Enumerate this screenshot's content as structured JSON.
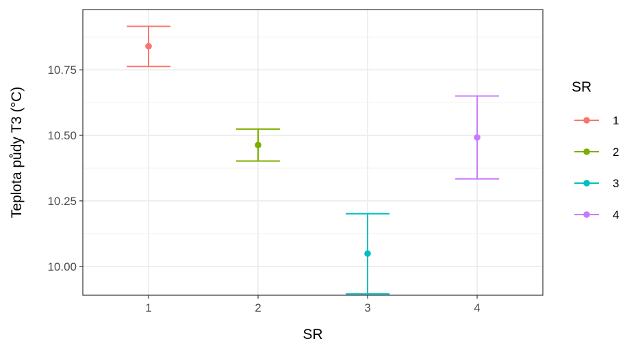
{
  "chart_data": {
    "type": "errorbar",
    "xlabel": "SR",
    "ylabel": "Teplota půdy T3 (°C)",
    "categories": [
      "1",
      "2",
      "3",
      "4"
    ],
    "ylim": [
      9.89,
      10.98
    ],
    "y_ticks": [
      10.0,
      10.25,
      10.5,
      10.75
    ],
    "y_tick_labels": [
      "10.00",
      "10.25",
      "10.50",
      "10.75"
    ],
    "grid": true,
    "series": [
      {
        "name": "1",
        "x": "1",
        "mean": 10.84,
        "lower": 10.763,
        "upper": 10.916,
        "color": "#F8766D"
      },
      {
        "name": "2",
        "x": "2",
        "mean": 10.463,
        "lower": 10.402,
        "upper": 10.524,
        "color": "#7CAE00"
      },
      {
        "name": "3",
        "x": "3",
        "mean": 10.049,
        "lower": 9.895,
        "upper": 10.201,
        "color": "#00BFC4"
      },
      {
        "name": "4",
        "x": "4",
        "mean": 10.492,
        "lower": 10.334,
        "upper": 10.65,
        "color": "#C77CFF"
      }
    ],
    "legend": {
      "title": "SR",
      "position": "right"
    }
  }
}
